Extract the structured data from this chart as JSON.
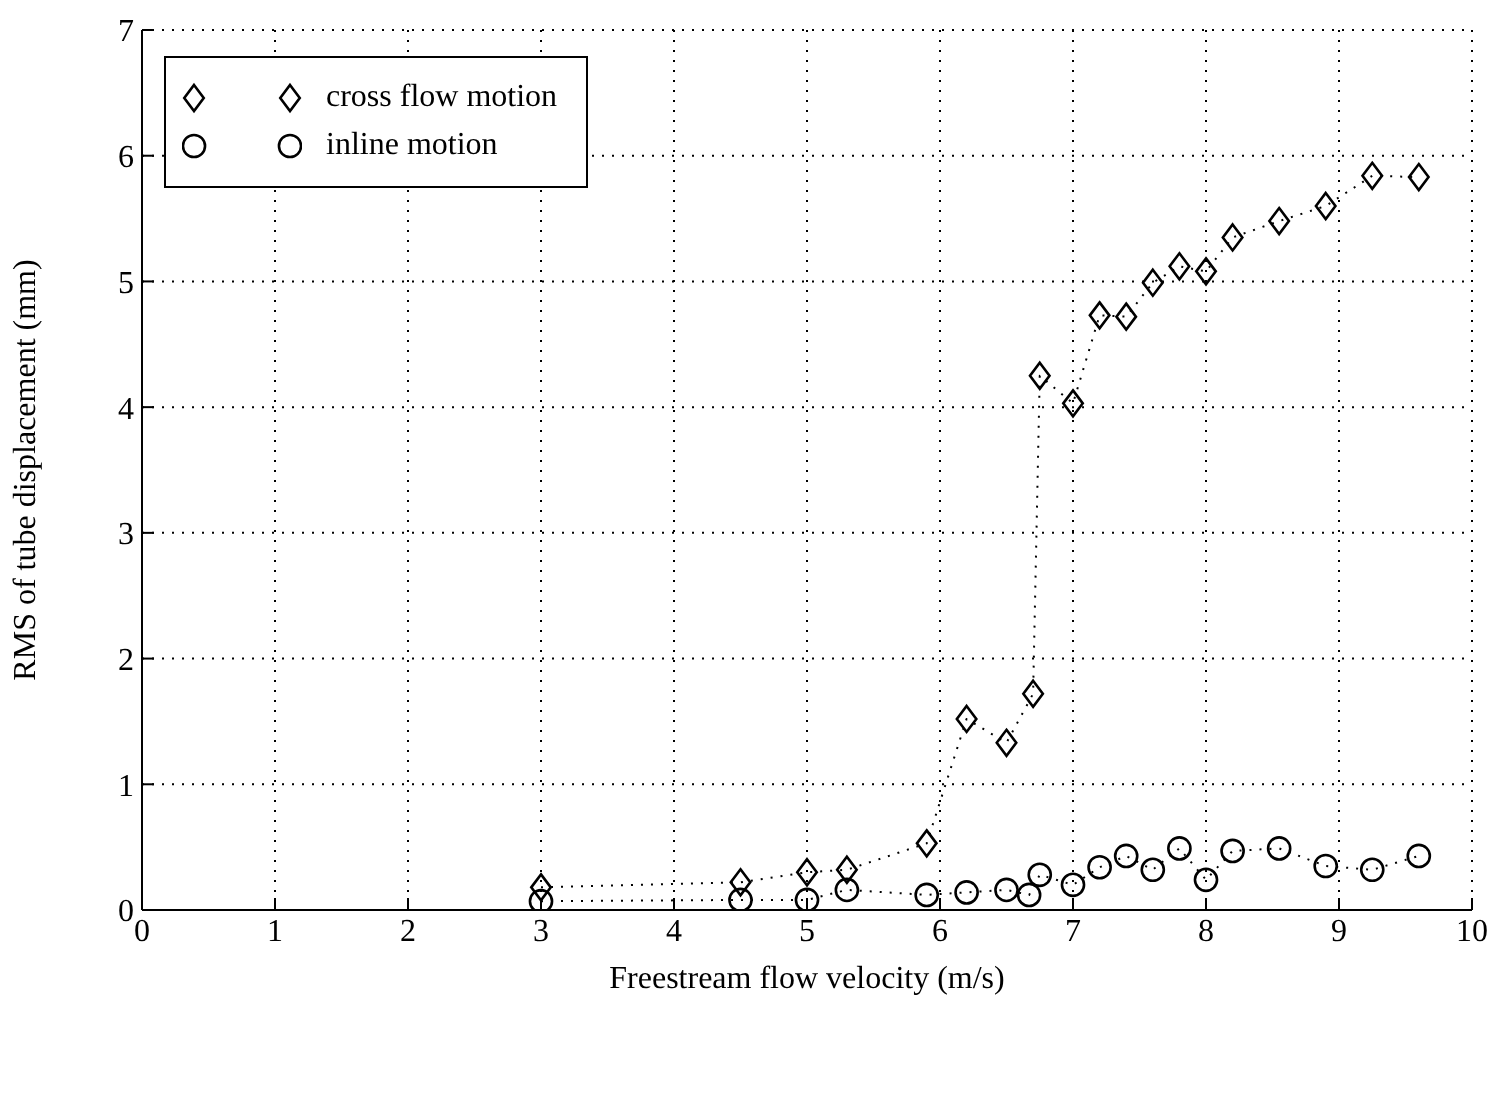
{
  "chart_data": {
    "type": "line",
    "xlabel": "Freestream flow velocity (m/s)",
    "ylabel": "RMS of tube displacement (mm)",
    "xlim": [
      0,
      10
    ],
    "xticks": [
      0,
      1,
      2,
      3,
      4,
      5,
      6,
      7,
      8,
      9,
      10
    ],
    "ylim": [
      0,
      7
    ],
    "yticks": [
      0,
      1,
      2,
      3,
      4,
      5,
      6,
      7
    ],
    "grid": true,
    "legend": "top left",
    "line_style": "dotted",
    "series": [
      {
        "name": "cross flow motion",
        "color": "#000000",
        "marker": "diamond",
        "x": [
          3,
          4.5,
          5,
          5.3,
          5.9,
          6.2,
          6.5,
          6.7,
          6.75,
          7.0,
          7.2,
          7.4,
          7.6,
          7.8,
          8.0,
          8.2,
          8.55,
          8.9,
          9.25,
          9.6
        ],
        "values": [
          0.18,
          0.22,
          0.3,
          0.32,
          0.53,
          1.52,
          1.33,
          1.72,
          4.25,
          4.03,
          4.73,
          4.72,
          4.99,
          5.12,
          5.08,
          5.35,
          5.48,
          5.6,
          5.84,
          5.83
        ]
      },
      {
        "name": "inline motion",
        "color": "#000000",
        "marker": "circle",
        "x": [
          3,
          4.5,
          5,
          5.3,
          5.9,
          6.2,
          6.5,
          6.67,
          6.75,
          7.0,
          7.2,
          7.4,
          7.6,
          7.8,
          8.0,
          8.2,
          8.55,
          8.9,
          9.25,
          9.6
        ],
        "values": [
          0.07,
          0.08,
          0.08,
          0.16,
          0.12,
          0.14,
          0.16,
          0.12,
          0.28,
          0.2,
          0.34,
          0.43,
          0.32,
          0.49,
          0.24,
          0.47,
          0.49,
          0.35,
          0.32,
          0.43
        ]
      }
    ]
  }
}
